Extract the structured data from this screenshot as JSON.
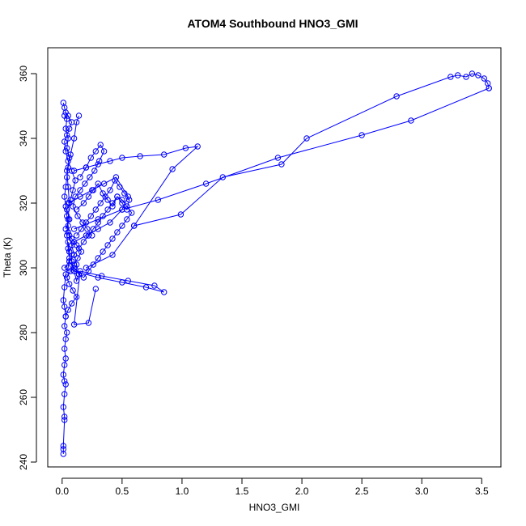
{
  "chart_data": {
    "type": "scatter",
    "title": "ATOM4 Southbound HNO3_GMI",
    "xlabel": "HNO3_GMI",
    "ylabel": "Theta (K)",
    "xlim": [
      -0.12,
      3.66
    ],
    "ylim": [
      238.5,
      368
    ],
    "x_ticks": [
      "0.0",
      "0.5",
      "1.0",
      "1.5",
      "2.0",
      "2.5",
      "3.0",
      "3.5"
    ],
    "y_ticks": [
      "240",
      "260",
      "280",
      "300",
      "320",
      "340",
      "360"
    ],
    "marker": "open-circle",
    "connect_points": true,
    "color": "#0000ff",
    "grid": false,
    "series": [
      {
        "x": [
          0.01,
          0.01,
          0.01,
          0.02,
          0.02,
          0.01,
          0.02,
          0.03,
          0.02,
          0.01,
          0.02,
          0.03,
          0.02,
          0.03,
          0.04,
          0.02,
          0.03,
          0.02,
          0.01,
          0.02,
          0.03,
          0.05,
          0.06,
          0.05,
          0.04,
          0.05,
          0.06,
          0.05,
          0.04,
          0.07,
          0.1,
          0.12,
          0.14
        ],
        "y": [
          242.5,
          244,
          245,
          253,
          254,
          257,
          261,
          264,
          265,
          267,
          270,
          272,
          275,
          278,
          280,
          282,
          285,
          288,
          290,
          294,
          298,
          300,
          303,
          306,
          310,
          315,
          320,
          325,
          330,
          335,
          340,
          345,
          347
        ]
      },
      {
        "x": [
          0.02,
          0.04,
          0.03,
          0.05,
          0.04,
          0.06,
          0.05,
          0.04,
          0.03,
          0.02,
          0.03,
          0.04,
          0.05,
          0.06,
          0.08,
          0.1,
          0.12,
          0.14,
          0.12,
          0.1,
          0.08,
          0.06,
          0.05
        ],
        "y": [
          347,
          346,
          343,
          340,
          337,
          334,
          331,
          328,
          325,
          322,
          319,
          316,
          313,
          310,
          307,
          304,
          301,
          298,
          296,
          299,
          302,
          305,
          308
        ]
      },
      {
        "x": [
          0.05,
          0.15,
          0.25,
          0.35,
          0.45,
          0.55,
          0.5,
          0.4,
          0.3,
          0.2,
          0.1,
          0.06
        ],
        "y": [
          320,
          322,
          324,
          326,
          328,
          322,
          318,
          314,
          312,
          310,
          308,
          305
        ]
      },
      {
        "x": [
          0.1,
          0.2,
          0.3,
          0.4,
          0.5,
          0.65,
          0.85,
          1.03,
          1.13,
          0.92,
          0.6
        ],
        "y": [
          330,
          331,
          332,
          333,
          334,
          334.5,
          335,
          337,
          337.5,
          330.5,
          313
        ]
      },
      {
        "x": [
          0.1,
          0.3,
          0.5,
          0.7,
          0.85,
          0.77,
          0.55,
          0.33,
          0.15,
          0.1,
          0.22,
          0.28
        ],
        "y": [
          299,
          297,
          295.5,
          294,
          292.5,
          294.5,
          296,
          297.5,
          299,
          282.5,
          283,
          293.5
        ]
      },
      {
        "x": [
          0.2,
          0.42,
          0.6,
          0.99,
          1.34,
          1.83,
          2.04,
          2.79,
          3.24,
          3.3,
          3.37,
          3.42,
          3.47,
          3.52,
          3.55,
          3.56
        ],
        "y": [
          300,
          304,
          313,
          316.5,
          328,
          332,
          340,
          353,
          359,
          359.5,
          359,
          360,
          359.5,
          358.5,
          357,
          355.5
        ]
      },
      {
        "x": [
          3.56,
          2.91,
          2.5,
          1.8,
          1.2,
          0.8,
          0.5,
          0.3,
          0.1
        ],
        "y": [
          355.5,
          345.5,
          341,
          334,
          326,
          321,
          318,
          315,
          312
        ]
      },
      {
        "x": [
          0.03,
          0.06,
          0.04,
          0.07,
          0.09,
          0.11,
          0.08,
          0.05,
          0.03,
          0.02,
          0.04,
          0.06,
          0.08,
          0.05,
          0.03,
          0.02,
          0.01
        ],
        "y": [
          312,
          315,
          318,
          321,
          324,
          327,
          330,
          333,
          336,
          339,
          341,
          343,
          345,
          347,
          348,
          349.5,
          351
        ]
      },
      {
        "x": [
          0.12,
          0.18,
          0.22,
          0.26,
          0.3,
          0.34,
          0.38,
          0.42,
          0.46,
          0.5,
          0.54,
          0.56,
          0.52,
          0.48,
          0.44,
          0.4,
          0.36,
          0.32,
          0.28,
          0.24,
          0.2,
          0.16,
          0.12
        ],
        "y": [
          318,
          320,
          322,
          324,
          326,
          323,
          321,
          319,
          322,
          320,
          318,
          321,
          323,
          325,
          327,
          324,
          322,
          320,
          318,
          316,
          314,
          312,
          310
        ]
      },
      {
        "x": [
          0.15,
          0.2,
          0.24,
          0.28,
          0.32,
          0.35,
          0.31,
          0.27,
          0.23,
          0.19,
          0.15,
          0.11,
          0.09,
          0.13,
          0.17,
          0.21,
          0.25
        ],
        "y": [
          328,
          331,
          334,
          336,
          338,
          336,
          333,
          330,
          328,
          326,
          324,
          322,
          319,
          316,
          314,
          312,
          310
        ]
      },
      {
        "x": [
          0.02,
          0.06,
          0.1,
          0.14,
          0.18,
          0.22,
          0.26,
          0.3,
          0.34,
          0.38,
          0.42,
          0.46,
          0.5,
          0.54,
          0.58,
          0.54,
          0.5,
          0.46,
          0.42,
          0.38,
          0.34,
          0.3,
          0.26,
          0.22,
          0.18,
          0.14,
          0.1,
          0.06
        ],
        "y": [
          300,
          302,
          304,
          306,
          308,
          310,
          312,
          314,
          316,
          318,
          320,
          322,
          321,
          319,
          317,
          315,
          313,
          311,
          309,
          307,
          305,
          303,
          301,
          299,
          297,
          298,
          300,
          302
        ]
      },
      {
        "x": [
          0.03,
          0.05,
          0.08,
          0.12,
          0.09,
          0.06,
          0.04,
          0.07,
          0.1,
          0.13,
          0.16,
          0.12,
          0.08,
          0.05
        ],
        "y": [
          285,
          287,
          289,
          291,
          293,
          295,
          297,
          299,
          301,
          303,
          305,
          307,
          309,
          311
        ]
      }
    ]
  }
}
